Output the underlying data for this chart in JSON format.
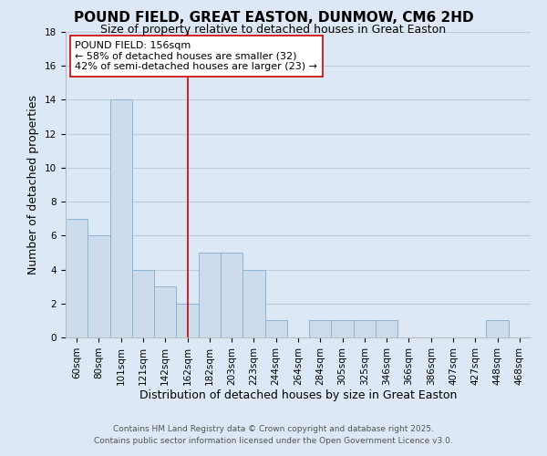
{
  "title": "POUND FIELD, GREAT EASTON, DUNMOW, CM6 2HD",
  "subtitle": "Size of property relative to detached houses in Great Easton",
  "xlabel": "Distribution of detached houses by size in Great Easton",
  "ylabel": "Number of detached properties",
  "bar_labels": [
    "60sqm",
    "80sqm",
    "101sqm",
    "121sqm",
    "142sqm",
    "162sqm",
    "182sqm",
    "203sqm",
    "223sqm",
    "244sqm",
    "264sqm",
    "284sqm",
    "305sqm",
    "325sqm",
    "346sqm",
    "366sqm",
    "386sqm",
    "407sqm",
    "427sqm",
    "448sqm",
    "468sqm"
  ],
  "bar_values": [
    7,
    6,
    14,
    4,
    3,
    2,
    5,
    5,
    4,
    1,
    0,
    1,
    1,
    1,
    1,
    0,
    0,
    0,
    0,
    1,
    0
  ],
  "bar_color": "#ccdcec",
  "bar_edge_color": "#8eb4d4",
  "background_color": "#dce8f5",
  "vline_x_index": 5,
  "vline_color": "#cc0000",
  "annotation_title": "POUND FIELD: 156sqm",
  "annotation_line1": "← 58% of detached houses are smaller (32)",
  "annotation_line2": "42% of semi-detached houses are larger (23) →",
  "ylim": [
    0,
    18
  ],
  "yticks": [
    0,
    2,
    4,
    6,
    8,
    10,
    12,
    14,
    16,
    18
  ],
  "footnote1": "Contains HM Land Registry data © Crown copyright and database right 2025.",
  "footnote2": "Contains public sector information licensed under the Open Government Licence v3.0.",
  "title_fontsize": 11,
  "subtitle_fontsize": 9,
  "axis_label_fontsize": 9,
  "tick_fontsize": 7.5,
  "annotation_fontsize": 8,
  "footnote_fontsize": 6.5,
  "grid_color": "#c0ccd8"
}
